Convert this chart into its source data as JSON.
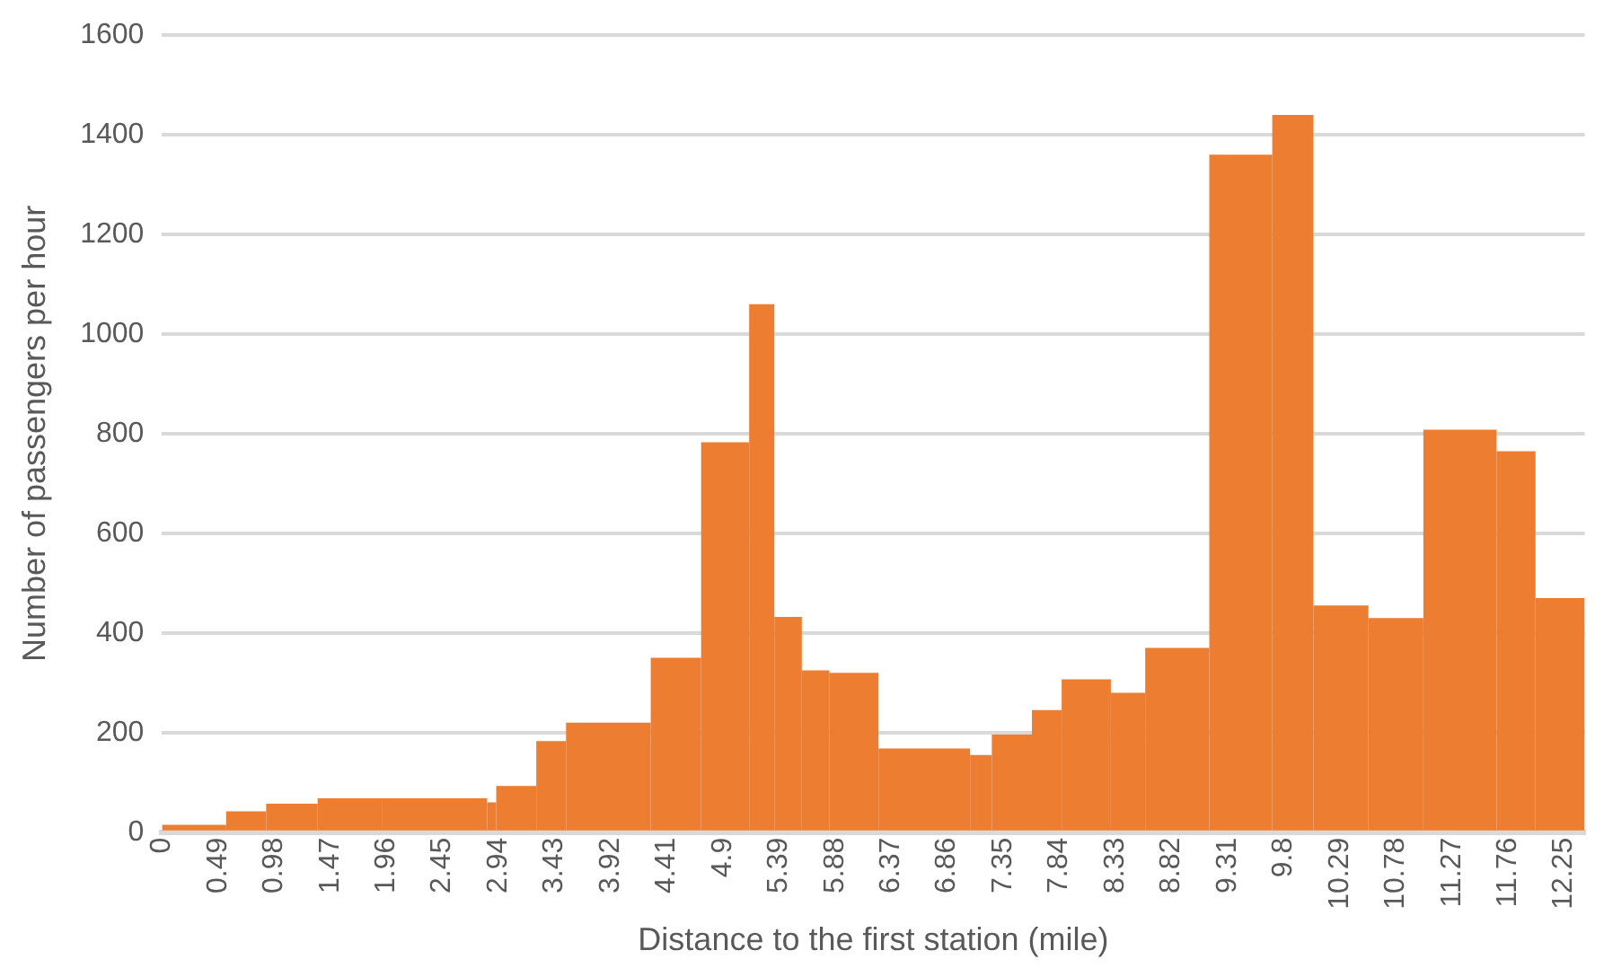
{
  "chart_data": {
    "type": "histogram",
    "xlabel": "Distance to the first station (mile)",
    "ylabel": "Number of passengers per hour",
    "bins": [
      0,
      0.56,
      0.91,
      1.36,
      1.92,
      2.84,
      2.92,
      3.27,
      3.53,
      4.27,
      4.71,
      5.13,
      5.35,
      5.59,
      5.83,
      6.26,
      7.06,
      7.25,
      7.6,
      7.86,
      8.29,
      8.59,
      9.15,
      9.7,
      10.06,
      10.54,
      11.02,
      11.66,
      12.0,
      12.43
    ],
    "values": [
      15,
      42,
      57,
      68,
      68,
      60,
      93,
      183,
      220,
      350,
      783,
      1060,
      432,
      325,
      320,
      168,
      155,
      196,
      245,
      307,
      280,
      370,
      1360,
      1440,
      455,
      430,
      808,
      765,
      470
    ],
    "color": "#ed7d31",
    "xlim": [
      0,
      12.43
    ],
    "xticks": [
      0,
      0.49,
      0.98,
      1.47,
      1.96,
      2.45,
      2.94,
      3.43,
      3.92,
      4.41,
      4.9,
      5.39,
      5.88,
      6.37,
      6.86,
      7.35,
      7.84,
      8.33,
      8.82,
      9.31,
      9.8,
      10.29,
      10.78,
      11.27,
      11.76,
      12.25
    ],
    "ylim": [
      0,
      1600
    ],
    "yticks": [
      0,
      200,
      400,
      600,
      800,
      1000,
      1200,
      1400,
      1600
    ],
    "grid": "y",
    "legend": false
  }
}
